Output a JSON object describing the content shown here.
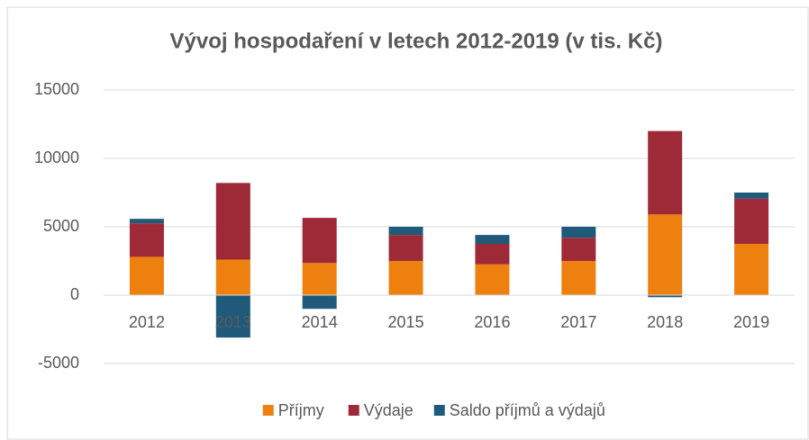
{
  "chart_data": {
    "type": "bar",
    "stacked": true,
    "title": "Vývoj hospodaření v letech 2012-2019 (v tis. Kč)",
    "categories": [
      "2012",
      "2013",
      "2014",
      "2015",
      "2016",
      "2017",
      "2018",
      "2019"
    ],
    "series": [
      {
        "name": "Příjmy",
        "color": "#ee8010",
        "values": [
          2800,
          2600,
          2350,
          2500,
          2250,
          2500,
          5900,
          3750
        ]
      },
      {
        "name": "Výdaje",
        "color": "#9e2a37",
        "values": [
          2450,
          5600,
          3300,
          1900,
          1500,
          1700,
          6100,
          3300
        ]
      },
      {
        "name": "Saldo příjmů a výdajů",
        "color": "#1f5a7a",
        "values": [
          330,
          -3100,
          -1000,
          600,
          650,
          800,
          -150,
          450
        ]
      }
    ],
    "ylim": [
      -5000,
      15000
    ],
    "yticks": [
      -5000,
      0,
      5000,
      10000,
      15000
    ],
    "grid": true,
    "legend": "bottom"
  }
}
